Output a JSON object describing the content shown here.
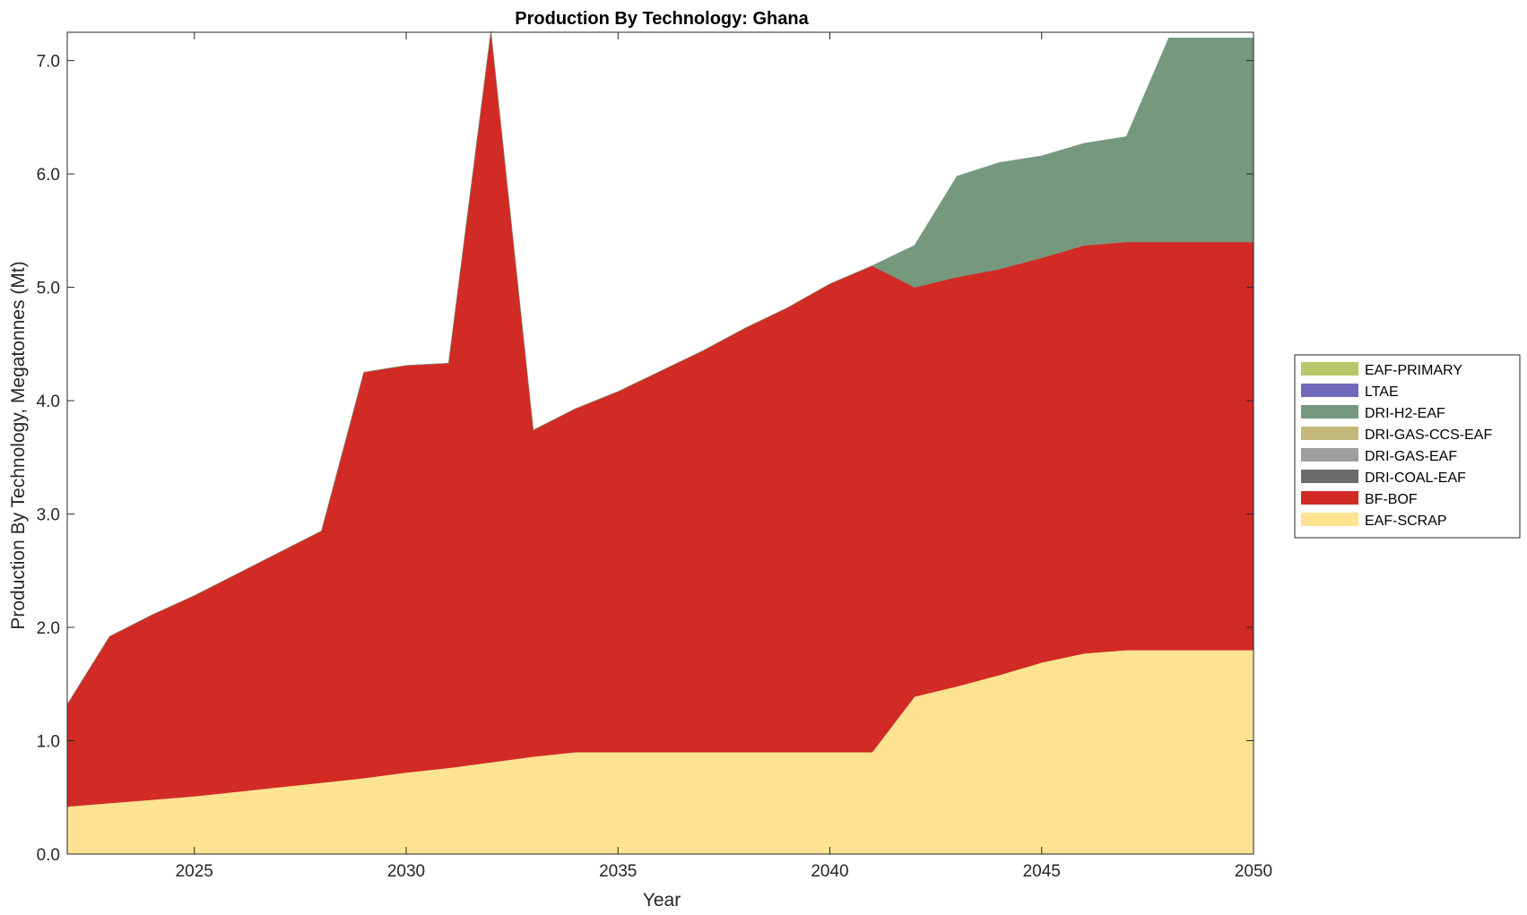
{
  "chart_data": {
    "type": "area",
    "stacked": true,
    "title": "Production By Technology: Ghana",
    "xlabel": "Year",
    "ylabel": "Production By Technology, Megatonnes (Mt)",
    "xlim": [
      2022,
      2050
    ],
    "ylim": [
      0,
      7.25
    ],
    "xticks": [
      2025,
      2030,
      2035,
      2040,
      2045,
      2050
    ],
    "xtick_labels": [
      "2025",
      "2030",
      "2035",
      "2040",
      "2045",
      "2050"
    ],
    "yticks": [
      0,
      1,
      2,
      3,
      4,
      5,
      6,
      7
    ],
    "ytick_labels": [
      "0.0",
      "1.0",
      "2.0",
      "3.0",
      "4.0",
      "5.0",
      "6.0",
      "7.0"
    ],
    "grid": false,
    "legend_position": "outside-right",
    "x": [
      2022,
      2023,
      2024,
      2025,
      2026,
      2027,
      2028,
      2029,
      2030,
      2031,
      2032,
      2033,
      2034,
      2035,
      2036,
      2037,
      2038,
      2039,
      2040,
      2041,
      2042,
      2043,
      2044,
      2045,
      2046,
      2047,
      2048,
      2049,
      2050
    ],
    "series": [
      {
        "name": "EAF-SCRAP",
        "color": "#fde392",
        "values": [
          0.42,
          0.45,
          0.48,
          0.51,
          0.55,
          0.59,
          0.63,
          0.67,
          0.72,
          0.76,
          0.81,
          0.86,
          0.9,
          0.9,
          0.9,
          0.9,
          0.9,
          0.9,
          0.9,
          0.9,
          1.39,
          1.48,
          1.58,
          1.69,
          1.77,
          1.8,
          1.8,
          1.8,
          1.8
        ]
      },
      {
        "name": "BF-BOF",
        "color": "#d22a25",
        "values": [
          0.9,
          1.47,
          1.63,
          1.77,
          1.92,
          2.07,
          2.22,
          3.58,
          3.59,
          3.57,
          6.45,
          2.88,
          3.03,
          3.18,
          3.36,
          3.54,
          3.74,
          3.92,
          4.13,
          4.29,
          3.61,
          3.61,
          3.58,
          3.57,
          3.6,
          3.6,
          3.6,
          3.6,
          3.6
        ]
      },
      {
        "name": "DRI-COAL-EAF",
        "color": "#6b6b6b",
        "values": [
          0,
          0,
          0,
          0,
          0,
          0,
          0,
          0,
          0,
          0,
          0,
          0,
          0,
          0,
          0,
          0,
          0,
          0,
          0,
          0,
          0,
          0,
          0,
          0,
          0,
          0,
          0,
          0,
          0
        ]
      },
      {
        "name": "DRI-GAS-EAF",
        "color": "#9e9e9e",
        "values": [
          0,
          0,
          0,
          0,
          0,
          0,
          0,
          0,
          0,
          0,
          0,
          0,
          0,
          0,
          0,
          0,
          0,
          0,
          0,
          0,
          0,
          0,
          0,
          0,
          0,
          0,
          0,
          0,
          0
        ]
      },
      {
        "name": "DRI-GAS-CCS-EAF",
        "color": "#c4b97b",
        "values": [
          0,
          0,
          0,
          0,
          0,
          0,
          0,
          0,
          0,
          0,
          0,
          0,
          0,
          0,
          0,
          0,
          0,
          0,
          0,
          0,
          0,
          0,
          0,
          0,
          0,
          0,
          0,
          0,
          0
        ]
      },
      {
        "name": "DRI-H2-EAF",
        "color": "#76987d",
        "values": [
          0,
          0,
          0,
          0,
          0,
          0,
          0,
          0,
          0,
          0,
          0,
          0,
          0,
          0,
          0,
          0,
          0,
          0,
          0,
          0,
          0.37,
          0.89,
          0.94,
          0.9,
          0.9,
          0.93,
          1.8,
          1.8,
          1.8
        ]
      },
      {
        "name": "LTAE",
        "color": "#7068bb",
        "values": [
          0,
          0,
          0,
          0,
          0,
          0,
          0,
          0,
          0,
          0,
          0,
          0,
          0,
          0,
          0,
          0,
          0,
          0,
          0,
          0,
          0,
          0,
          0,
          0,
          0,
          0,
          0,
          0,
          0
        ]
      },
      {
        "name": "EAF-PRIMARY",
        "color": "#b9c66a",
        "values": [
          0,
          0,
          0,
          0,
          0,
          0,
          0,
          0,
          0,
          0,
          0,
          0,
          0,
          0,
          0,
          0,
          0,
          0,
          0,
          0,
          0,
          0,
          0,
          0,
          0,
          0,
          0,
          0,
          0
        ]
      }
    ],
    "legend_order": [
      "EAF-PRIMARY",
      "LTAE",
      "DRI-H2-EAF",
      "DRI-GAS-CCS-EAF",
      "DRI-GAS-EAF",
      "DRI-COAL-EAF",
      "BF-BOF",
      "EAF-SCRAP"
    ]
  }
}
